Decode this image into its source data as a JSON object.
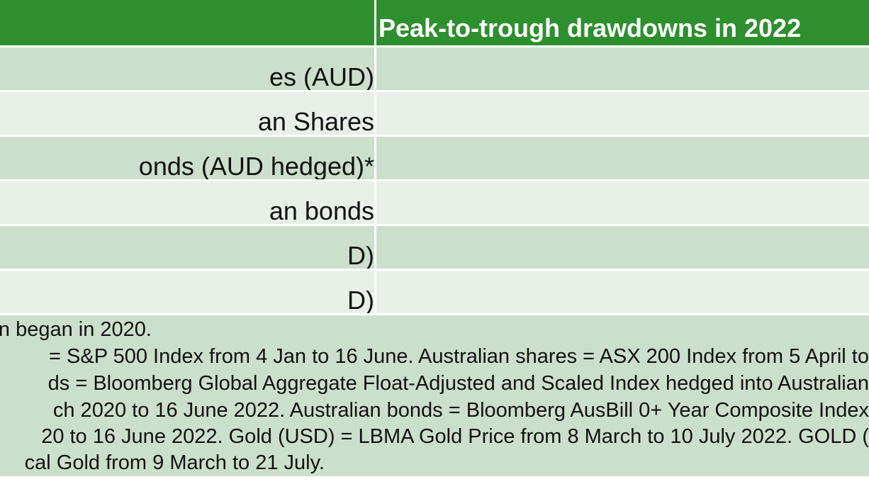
{
  "table": {
    "header": {
      "left_label": "",
      "right_label": "Peak-to-trough drawdowns in 2022"
    },
    "rows": [
      {
        "label": "es (AUD)",
        "value": ""
      },
      {
        "label": "an Shares",
        "value": ""
      },
      {
        "label": "onds (AUD hedged)*",
        "value": ""
      },
      {
        "label": "an bonds",
        "value": ""
      },
      {
        "label": "D)",
        "value": ""
      },
      {
        "label": "D)",
        "value": ""
      }
    ]
  },
  "footnote": {
    "lines": [
      "n began in 2020.",
      "= S&P 500 Index from 4 Jan to 16 June. Australian shares = ASX 200 Index from 5 April to",
      "ds = Bloomberg Global Aggregate Float-Adjusted and Scaled Index hedged into Australian",
      "ch 2020 to 16 June 2022. Australian bonds = Bloomberg AusBill 0+ Year Composite Index",
      "20 to 16 June 2022. Gold (USD) = LBMA Gold Price from 8 March to 10 July 2022. GOLD (",
      "cal Gold from 9 March to 21 July."
    ]
  },
  "colors": {
    "header_green": "#2e8f2e",
    "row_dark": "#ccdfcc",
    "row_light": "#e8f0e8"
  }
}
